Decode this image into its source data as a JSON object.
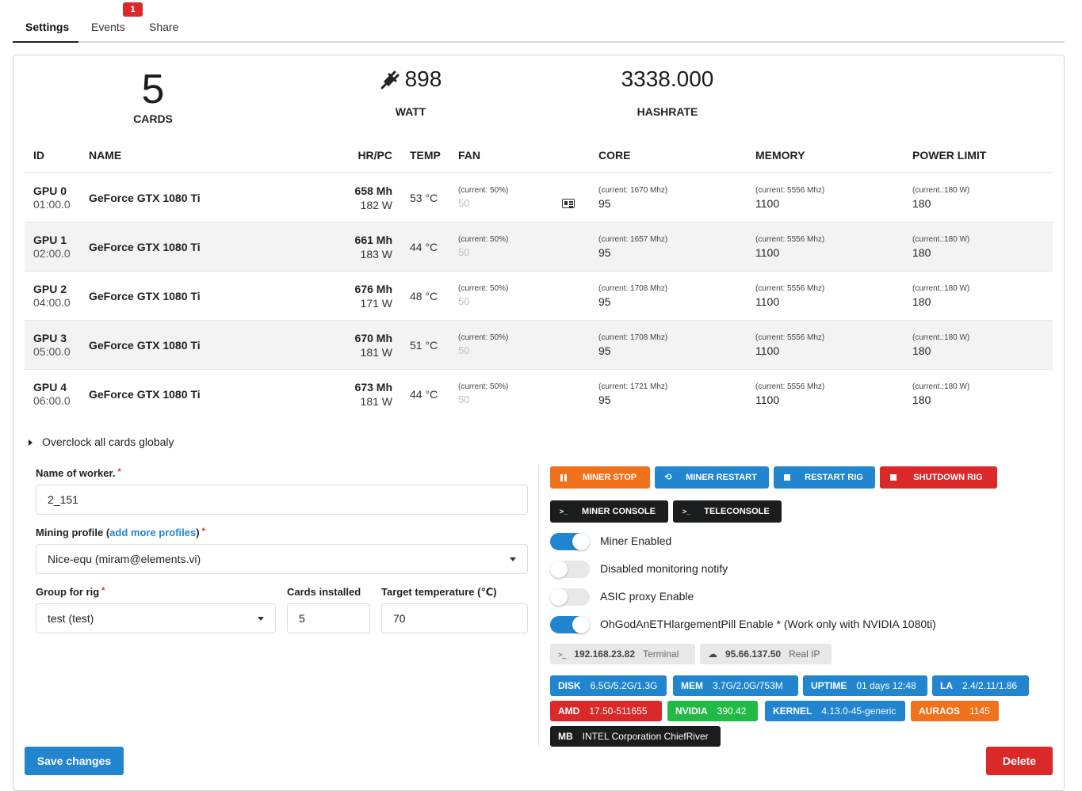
{
  "tabs": [
    {
      "label": "Settings",
      "active": true
    },
    {
      "label": "Events",
      "badge": "1"
    },
    {
      "label": "Share"
    }
  ],
  "stats": {
    "cards": {
      "value": "5",
      "label": "CARDS"
    },
    "watt": {
      "value": "898",
      "label": "WATT",
      "icon": "plug-icon"
    },
    "hashrate": {
      "value": "3338.000",
      "label": "HASHRATE"
    }
  },
  "table": {
    "headers": {
      "id": "ID",
      "name": "NAME",
      "hr": "HR/PC",
      "temp": "TEMP",
      "fan": "FAN",
      "core": "CORE",
      "memory": "MEMORY",
      "power": "POWER LIMIT"
    },
    "rows": [
      {
        "id": "GPU 0",
        "bus": "01:00.0",
        "name": "GeForce GTX 1080 Ti",
        "hr": "658 Mh",
        "w": "182 W",
        "temp": "53 °C",
        "fan_cur": "(current: 50%)",
        "fan": "50",
        "core_cur": "(current: 1670 Mhz)",
        "core": "95",
        "mem_cur": "(current: 5556 Mhz)",
        "mem": "1100",
        "pl_cur": "(current.:180 W)",
        "pl": "180"
      },
      {
        "id": "GPU 1",
        "bus": "02:00.0",
        "name": "GeForce GTX 1080 Ti",
        "hr": "661 Mh",
        "w": "183 W",
        "temp": "44 °C",
        "fan_cur": "(current: 50%)",
        "fan": "50",
        "core_cur": "(current: 1657 Mhz)",
        "core": "95",
        "mem_cur": "(current: 5556 Mhz)",
        "mem": "1100",
        "pl_cur": "(current.:180 W)",
        "pl": "180"
      },
      {
        "id": "GPU 2",
        "bus": "04:00.0",
        "name": "GeForce GTX 1080 Ti",
        "hr": "676 Mh",
        "w": "171 W",
        "temp": "48 °C",
        "fan_cur": "(current: 50%)",
        "fan": "50",
        "core_cur": "(current: 1708 Mhz)",
        "core": "95",
        "mem_cur": "(current: 5556 Mhz)",
        "mem": "1100",
        "pl_cur": "(current.:180 W)",
        "pl": "180"
      },
      {
        "id": "GPU 3",
        "bus": "05:00.0",
        "name": "GeForce GTX 1080 Ti",
        "hr": "670 Mh",
        "w": "181 W",
        "temp": "51 °C",
        "fan_cur": "(current: 50%)",
        "fan": "50",
        "core_cur": "(current: 1708 Mhz)",
        "core": "95",
        "mem_cur": "(current: 5556 Mhz)",
        "mem": "1100",
        "pl_cur": "(current.:180 W)",
        "pl": "180"
      },
      {
        "id": "GPU 4",
        "bus": "06:00.0",
        "name": "GeForce GTX 1080 Ti",
        "hr": "673 Mh",
        "w": "181 W",
        "temp": "44 °C",
        "fan_cur": "(current: 50%)",
        "fan": "50",
        "core_cur": "(current: 1721 Mhz)",
        "core": "95",
        "mem_cur": "(current: 5556 Mhz)",
        "mem": "1100",
        "pl_cur": "(current.:180 W)",
        "pl": "180"
      }
    ]
  },
  "overclock": {
    "label": "Overclock all cards globaly"
  },
  "form": {
    "worker_label": "Name of worker.",
    "worker_value": "2_151",
    "profile_label_pre": "Mining profile (",
    "profile_link": "add more profiles",
    "profile_label_post": ")",
    "profile_value": "Nice-equ (miram@elements.vi)",
    "group_label": "Group for rig",
    "group_value": "test (test)",
    "cards_label": "Cards installed",
    "cards_value": "5",
    "temp_label": "Target temperature (℃)",
    "temp_value": "70",
    "required": "*"
  },
  "actions": {
    "miner_stop": "MINER STOP",
    "miner_restart": "MINER RESTART",
    "restart_rig": "RESTART RIG",
    "shutdown_rig": "SHUTDOWN RIG",
    "miner_console": "MINER CONSOLE",
    "teleconsole": "TELECONSOLE",
    "prompt_glyph": ">_"
  },
  "toggles": [
    {
      "label": "Miner Enabled",
      "on": true
    },
    {
      "label": "Disabled monitoring notify",
      "on": false
    },
    {
      "label": "ASIC proxy Enable",
      "on": false
    },
    {
      "label": "OhGodAnETHlargementPill Enable * (Work only with NVIDIA 1080ti)",
      "on": true
    }
  ],
  "network": {
    "local_ip": "192.168.23.82",
    "local_sub": "Terminal",
    "real_ip": "95.66.137.50",
    "real_sub": "Real IP"
  },
  "system": {
    "disk": {
      "k": "DISK",
      "v": "6.5G/5.2G/1.3G"
    },
    "mem": {
      "k": "MEM",
      "v": "3.7G/2.0G/753M"
    },
    "uptime": {
      "k": "UPTIME",
      "v": "01 days 12:48"
    },
    "la": {
      "k": "LA",
      "v": "2.4/2.11/1.86"
    },
    "amd": {
      "k": "AMD",
      "v": "17.50-511655"
    },
    "nvidia": {
      "k": "NVIDIA",
      "v": "390.42"
    },
    "kernel": {
      "k": "KERNEL",
      "v": "4.13.0-45-generic"
    },
    "auraos": {
      "k": "AURAOS",
      "v": "1145"
    },
    "mb": {
      "k": "MB",
      "v": "INTEL Corporation ChiefRiver"
    }
  },
  "buttons": {
    "save": "Save changes",
    "delete": "Delete"
  }
}
